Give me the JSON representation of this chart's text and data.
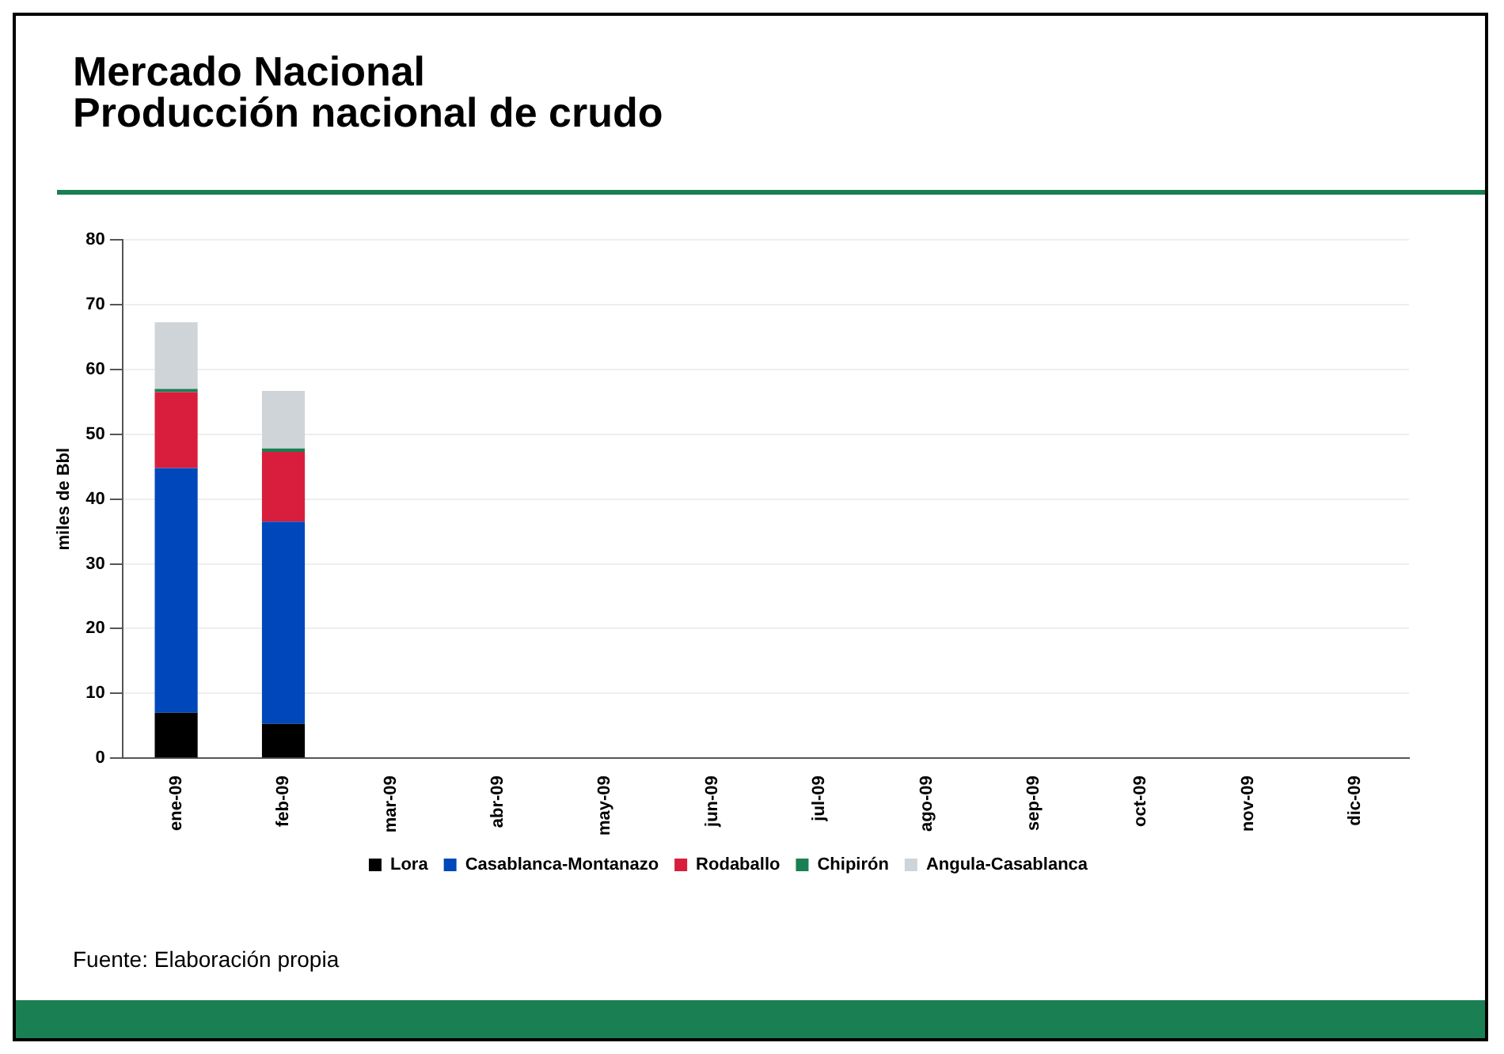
{
  "chart_data": {
    "type": "bar",
    "title": "Mercado Nacional\nProducción nacional de crudo",
    "ylabel": "miles de Bbl",
    "categories": [
      "ene-09",
      "feb-09",
      "mar-09",
      "abr-09",
      "may-09",
      "jun-09",
      "jul-09",
      "ago-09",
      "sep-09",
      "oct-09",
      "nov-09",
      "dic-09"
    ],
    "series": [
      {
        "name": "Lora",
        "color": "#000000",
        "values": [
          7,
          5.3,
          null,
          null,
          null,
          null,
          null,
          null,
          null,
          null,
          null,
          null
        ]
      },
      {
        "name": "Casablanca-Montanazo",
        "color": "#0047bb",
        "values": [
          37.8,
          31.2,
          null,
          null,
          null,
          null,
          null,
          null,
          null,
          null,
          null,
          null
        ]
      },
      {
        "name": "Rodaballo",
        "color": "#d81e3c",
        "values": [
          11.7,
          10.8,
          null,
          null,
          null,
          null,
          null,
          null,
          null,
          null,
          null,
          null
        ]
      },
      {
        "name": "Chipirón",
        "color": "#1a7f52",
        "values": [
          0.5,
          0.5,
          null,
          null,
          null,
          null,
          null,
          null,
          null,
          null,
          null,
          null
        ]
      },
      {
        "name": "Angula-Casablanca",
        "color": "#cfd4d8",
        "values": [
          10.3,
          8.9,
          null,
          null,
          null,
          null,
          null,
          null,
          null,
          null,
          null,
          null
        ]
      }
    ],
    "stacked": true,
    "ylim": [
      0,
      80
    ],
    "yticks": [
      0,
      10,
      20,
      30,
      40,
      50,
      60,
      70,
      80
    ],
    "grid": "y",
    "legend": "bottom",
    "annotations": [
      "Fuente: Elaboración propia"
    ]
  }
}
